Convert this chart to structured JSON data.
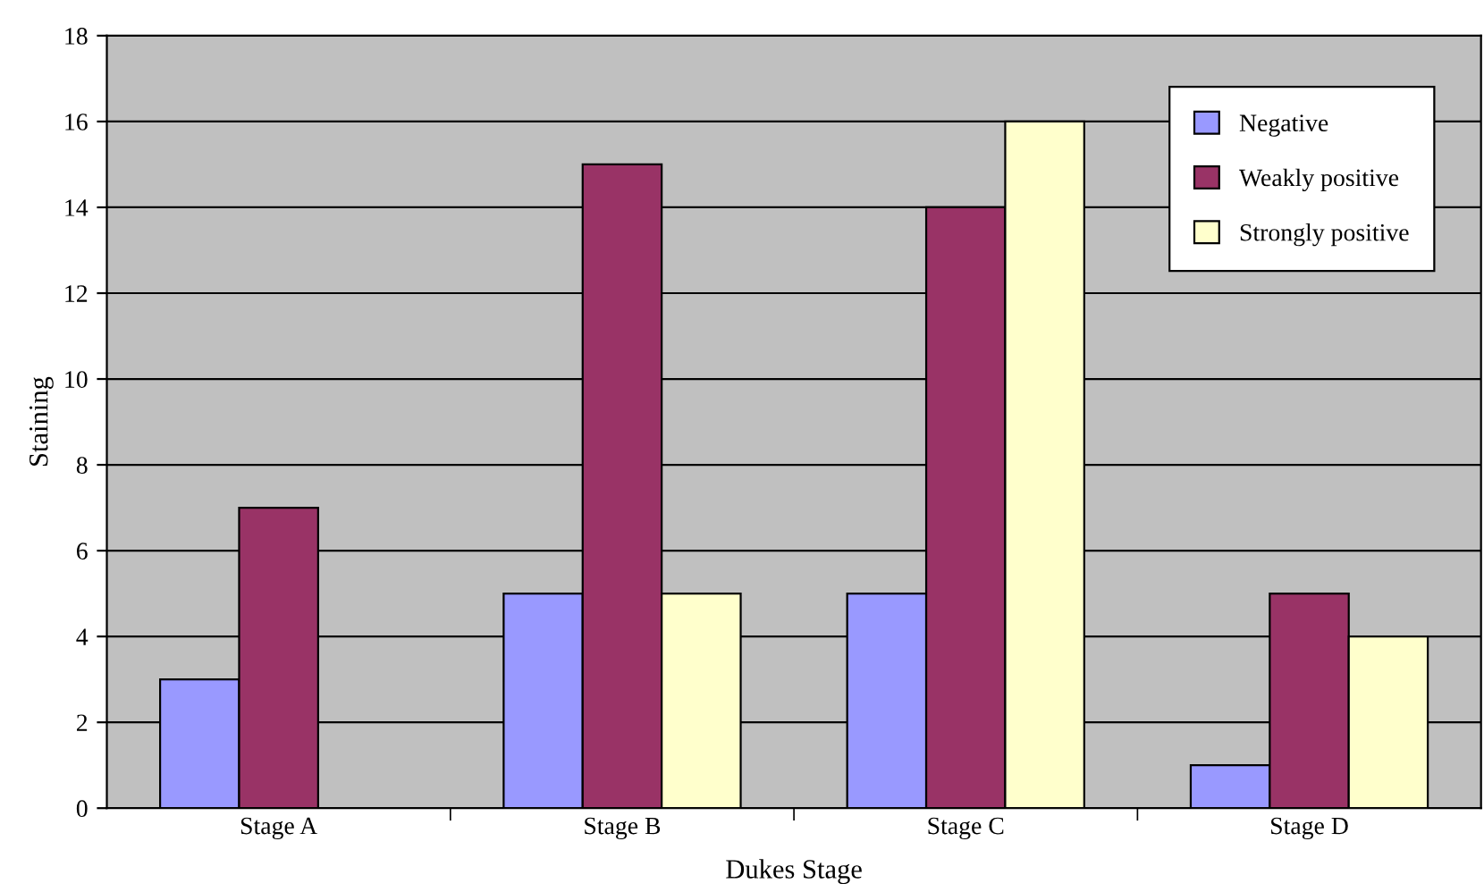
{
  "chart_data": {
    "type": "bar",
    "xlabel": "Dukes Stage",
    "ylabel": "Staining",
    "categories": [
      "Stage A",
      "Stage B",
      "Stage C",
      "Stage D"
    ],
    "series": [
      {
        "name": "Negative",
        "color": "#9999ff",
        "values": [
          3,
          5,
          5,
          1
        ]
      },
      {
        "name": "Weakly positive",
        "color": "#993366",
        "values": [
          7,
          15,
          14,
          5
        ]
      },
      {
        "name": "Strongly positive",
        "color": "#ffffcc",
        "values": [
          null,
          5,
          16,
          4
        ]
      }
    ],
    "ylim": [
      0,
      18
    ],
    "yticks": [
      0,
      2,
      4,
      6,
      8,
      10,
      12,
      14,
      16,
      18
    ],
    "grid": "y",
    "legend": "top right"
  }
}
